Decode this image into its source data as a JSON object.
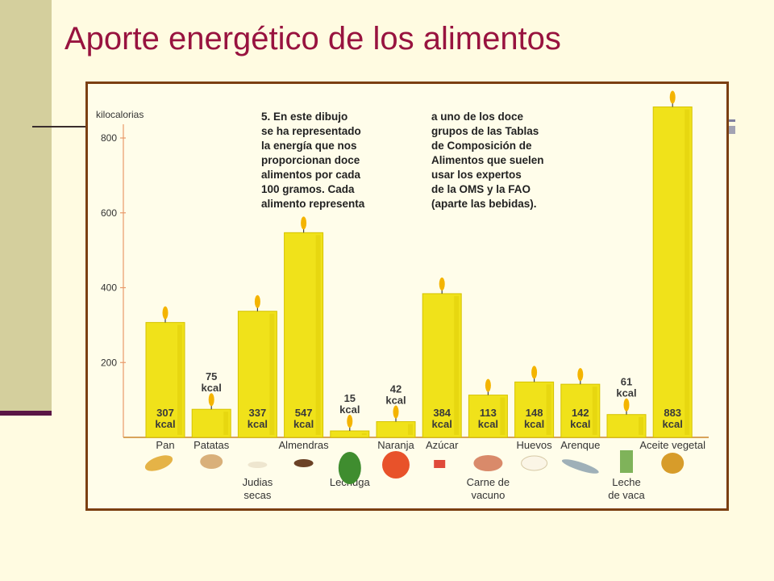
{
  "slide": {
    "title": "Aporte energético de los alimentos"
  },
  "figure": {
    "caption_left": "5. En este dibujo\nse ha representado\nla energía que nos\nproporcionan doce\nalimentos por cada\n100 gramos. Cada\nalimento representa",
    "caption_right": "a uno de los doce\ngrupos de las Tablas\nde Composición de\nAlimentos que suelen\nusar los expertos\nde la OMS y la FAO\n(aparte las bebidas)."
  },
  "colors": {
    "title": "#98133f",
    "candle": "#f0e21a",
    "candle_shade": "#d6c300",
    "flame": "#f4b400",
    "frame": "#7b3f12"
  },
  "chart_data": {
    "type": "bar",
    "style": "candles",
    "ylabel": "kilocalorias",
    "yticks": [
      200,
      400,
      600,
      800
    ],
    "ylim": [
      0,
      880
    ],
    "unit": "kcal",
    "categories": [
      "Pan",
      "Patatas",
      "Judias secas",
      "Almendras",
      "Lechuga",
      "Naranja",
      "Azúcar",
      "Carne de vacuno",
      "Huevos",
      "Arenque",
      "Leche de vaca",
      "Aceite vegetal"
    ],
    "values": [
      307,
      75,
      337,
      547,
      15,
      42,
      384,
      113,
      148,
      142,
      61,
      883
    ],
    "value_labels": [
      "307",
      "75",
      "337",
      "547",
      "15",
      "42",
      "384",
      "113",
      "148",
      "142",
      "61",
      "883"
    ],
    "category_labels": [
      [
        "Pan"
      ],
      [
        "Patatas"
      ],
      [
        "Judias",
        "secas"
      ],
      [
        "Almendras"
      ],
      [
        "Lechuga"
      ],
      [
        "Naranja"
      ],
      [
        "Azúcar"
      ],
      [
        "Carne de",
        "vacuno"
      ],
      [
        "Huevos"
      ],
      [
        "Arenque"
      ],
      [
        "Leche",
        "de vaca"
      ],
      [
        "Aceite vegetal"
      ]
    ]
  }
}
